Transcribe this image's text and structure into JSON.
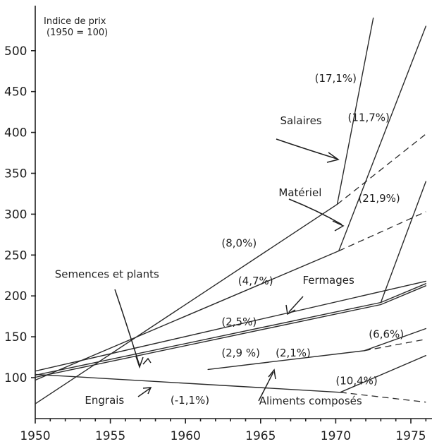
{
  "chart_data": {
    "type": "line",
    "title": "Indice de prix",
    "subtitle": "(1950 = 100)",
    "xlim": [
      1950,
      1976
    ],
    "ylim": [
      50,
      540
    ],
    "xticks": [
      1950,
      1955,
      1960,
      1965,
      1970,
      1975
    ],
    "xtick_labels": [
      "1950",
      "1955",
      "1960",
      "1965",
      "1970",
      "1975"
    ],
    "yticks": [
      100,
      150,
      200,
      250,
      300,
      350,
      400,
      450,
      500
    ],
    "ytick_labels": [
      "100",
      "150",
      "200",
      "250",
      "300",
      "350",
      "400",
      "450",
      "500"
    ],
    "series": [
      {
        "name": "Salaires",
        "x": [
          1950,
          1970.1,
          1972.5
        ],
        "y": [
          68,
          312,
          540
        ]
      },
      {
        "name": "Matériel",
        "x": [
          1950,
          1970.2,
          1976
        ],
        "y": [
          97,
          255,
          530
        ]
      },
      {
        "name": "Fermages",
        "x": [
          1950,
          1973,
          1976
        ],
        "y": [
          103,
          192,
          215
        ]
      },
      {
        "name": "Semences et plants",
        "x": [
          1950,
          1976
        ],
        "y": [
          108,
          218
        ]
      },
      {
        "name": "Engrais",
        "x": [
          1950,
          1970.3,
          1976
        ],
        "y": [
          104,
          82,
          127
        ]
      },
      {
        "name": "Aliments composés",
        "x": [
          1961.5,
          1971.9,
          1976
        ],
        "y": [
          110,
          133,
          160
        ]
      },
      {
        "name": "",
        "x": [
          1973,
          1976
        ],
        "y": [
          192,
          340
        ]
      }
    ],
    "projections": [
      {
        "x": [
          1970.1,
          1976
        ],
        "y": [
          312,
          398
        ]
      },
      {
        "x": [
          1970.2,
          1976
        ],
        "y": [
          255,
          303
        ]
      },
      {
        "x": [
          1971.9,
          1976
        ],
        "y": [
          133,
          147
        ]
      },
      {
        "x": [
          1970.3,
          1976
        ],
        "y": [
          82,
          70
        ]
      }
    ],
    "annotations": [
      {
        "text": "Salaires",
        "x": 1966.3,
        "y": 410
      },
      {
        "text": "Matériel",
        "x": 1966.2,
        "y": 322
      },
      {
        "text": "Semences et plants",
        "x": 1951.3,
        "y": 222
      },
      {
        "text": "Fermages",
        "x": 1967.8,
        "y": 215
      },
      {
        "text": "Engrais",
        "x": 1953.3,
        "y": 68
      },
      {
        "text": "Aliments composés",
        "x": 1964.9,
        "y": 67
      },
      {
        "text": "(17,1%)",
        "x": 1968.6,
        "y": 462
      },
      {
        "text": "(11,7%)",
        "x": 1970.8,
        "y": 414
      },
      {
        "text": "(21,9%)",
        "x": 1971.5,
        "y": 315
      },
      {
        "text": "(8,0%)",
        "x": 1962.4,
        "y": 260
      },
      {
        "text": "(4,7%)",
        "x": 1963.5,
        "y": 214
      },
      {
        "text": "(2,5%)",
        "x": 1962.4,
        "y": 164
      },
      {
        "text": "(6,6%)",
        "x": 1972.2,
        "y": 149
      },
      {
        "text": "(2,9 %)",
        "x": 1962.4,
        "y": 126
      },
      {
        "text": "(2,1%)",
        "x": 1966.0,
        "y": 126
      },
      {
        "text": "(10,4%)",
        "x": 1970.0,
        "y": 92
      },
      {
        "text": "(-1,1%)",
        "x": 1959.0,
        "y": 68
      }
    ]
  }
}
